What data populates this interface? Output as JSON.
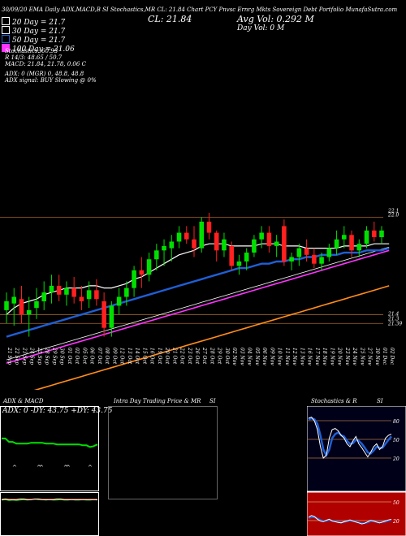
{
  "header": {
    "top_line": "30/09/20 EMA Daily ADX,MACD,B SI Stochastics,MR CL: 21.84 Chart PCY Pnvsc Ernrg Mkts Sovereign Debt Portfolio MunafaSutra.com",
    "close_label": "CL: 21.84",
    "avg_vol": "Avg Vol: 0.292 M",
    "day_vol": "Day Vol: 0 M",
    "legend": [
      {
        "label": "20 Day = 21.7",
        "color": "#ffffff"
      },
      {
        "label": "30 Day = 21.7",
        "color": "#ffffff"
      },
      {
        "label": "50 Day = 21.7",
        "color": "#1f5fd6"
      },
      {
        "label": "100 Day = 21.06",
        "color": "#ff33ff"
      }
    ],
    "stats": [
      "Stochastics: 60.93",
      "R 14/3: 48.65 / 50.7",
      "MACD: 21.84, 21.78, 0.06 C",
      "ADX: 0   (MGR) 0, 48.8, 48.8",
      "ADX signal:   BUY Slowing @ 0%"
    ]
  },
  "price_axis": {
    "upper_labels": [
      "22.1",
      "22.0"
    ],
    "lower_labels": [
      "21.4",
      "21.3",
      "21.39"
    ]
  },
  "chart_data": [
    {
      "type": "candlestick",
      "title": "",
      "dates": [
        "21 Sep",
        "22 Sep",
        "23 Sep",
        "24 Sep",
        "25 Sep",
        "28 Sep",
        "29 Sep",
        "30 Sep",
        "01 Oct",
        "02 Oct",
        "05 Oct",
        "06 Oct",
        "07 Oct",
        "08 Oct",
        "09 Oct",
        "12 Oct",
        "13 Oct",
        "14 Oct",
        "15 Oct",
        "16 Oct",
        "19 Oct",
        "20 Oct",
        "21 Oct",
        "22 Oct",
        "23 Oct",
        "26 Oct",
        "27 Oct",
        "28 Oct",
        "29 Oct",
        "30 Oct",
        "02 Nov",
        "03 Nov",
        "04 Nov",
        "05 Nov",
        "06 Nov",
        "09 Nov",
        "10 Nov",
        "11 Nov",
        "12 Nov",
        "13 Nov",
        "16 Nov",
        "17 Nov",
        "18 Nov",
        "19 Nov",
        "20 Nov",
        "23 Nov",
        "24 Nov",
        "25 Nov",
        "27 Nov",
        "30 Nov",
        "01 Dec",
        "02 Dec"
      ],
      "candles": [
        {
          "o": 21.42,
          "h": 21.5,
          "l": 21.36,
          "c": 21.46
        },
        {
          "o": 21.45,
          "h": 21.52,
          "l": 21.35,
          "c": 21.48
        },
        {
          "o": 21.47,
          "h": 21.53,
          "l": 21.36,
          "c": 21.4
        },
        {
          "o": 21.4,
          "h": 21.48,
          "l": 21.3,
          "c": 21.42
        },
        {
          "o": 21.43,
          "h": 21.52,
          "l": 21.38,
          "c": 21.46
        },
        {
          "o": 21.46,
          "h": 21.55,
          "l": 21.42,
          "c": 21.5
        },
        {
          "o": 21.5,
          "h": 21.58,
          "l": 21.45,
          "c": 21.53
        },
        {
          "o": 21.53,
          "h": 21.58,
          "l": 21.46,
          "c": 21.49
        },
        {
          "o": 21.49,
          "h": 21.55,
          "l": 21.44,
          "c": 21.52
        },
        {
          "o": 21.52,
          "h": 21.57,
          "l": 21.45,
          "c": 21.48
        },
        {
          "o": 21.48,
          "h": 21.53,
          "l": 21.42,
          "c": 21.46
        },
        {
          "o": 21.47,
          "h": 21.55,
          "l": 21.43,
          "c": 21.51
        },
        {
          "o": 21.51,
          "h": 21.56,
          "l": 21.44,
          "c": 21.47
        },
        {
          "o": 21.46,
          "h": 21.5,
          "l": 21.3,
          "c": 21.34
        },
        {
          "o": 21.34,
          "h": 21.46,
          "l": 21.3,
          "c": 21.44
        },
        {
          "o": 21.44,
          "h": 21.52,
          "l": 21.4,
          "c": 21.48
        },
        {
          "o": 21.48,
          "h": 21.55,
          "l": 21.44,
          "c": 21.52
        },
        {
          "o": 21.52,
          "h": 21.62,
          "l": 21.48,
          "c": 21.6
        },
        {
          "o": 21.6,
          "h": 21.66,
          "l": 21.52,
          "c": 21.58
        },
        {
          "o": 21.58,
          "h": 21.68,
          "l": 21.55,
          "c": 21.65
        },
        {
          "o": 21.65,
          "h": 21.72,
          "l": 21.6,
          "c": 21.69
        },
        {
          "o": 21.69,
          "h": 21.74,
          "l": 21.62,
          "c": 21.71
        },
        {
          "o": 21.7,
          "h": 21.76,
          "l": 21.64,
          "c": 21.73
        },
        {
          "o": 21.73,
          "h": 21.8,
          "l": 21.7,
          "c": 21.77
        },
        {
          "o": 21.77,
          "h": 21.8,
          "l": 21.72,
          "c": 21.74
        },
        {
          "o": 21.74,
          "h": 21.8,
          "l": 21.66,
          "c": 21.7
        },
        {
          "o": 21.7,
          "h": 21.84,
          "l": 21.68,
          "c": 21.82
        },
        {
          "o": 21.82,
          "h": 21.86,
          "l": 21.74,
          "c": 21.77
        },
        {
          "o": 21.77,
          "h": 21.78,
          "l": 21.64,
          "c": 21.69
        },
        {
          "o": 21.69,
          "h": 21.77,
          "l": 21.66,
          "c": 21.74
        },
        {
          "o": 21.71,
          "h": 21.73,
          "l": 21.6,
          "c": 21.62
        },
        {
          "o": 21.62,
          "h": 21.67,
          "l": 21.58,
          "c": 21.64
        },
        {
          "o": 21.64,
          "h": 21.7,
          "l": 21.6,
          "c": 21.68
        },
        {
          "o": 21.68,
          "h": 21.76,
          "l": 21.66,
          "c": 21.74
        },
        {
          "o": 21.74,
          "h": 21.8,
          "l": 21.7,
          "c": 21.77
        },
        {
          "o": 21.77,
          "h": 21.8,
          "l": 21.68,
          "c": 21.71
        },
        {
          "o": 21.71,
          "h": 21.76,
          "l": 21.66,
          "c": 21.73
        },
        {
          "o": 21.8,
          "h": 21.83,
          "l": 21.62,
          "c": 21.64
        },
        {
          "o": 21.64,
          "h": 21.68,
          "l": 21.6,
          "c": 21.66
        },
        {
          "o": 21.66,
          "h": 21.72,
          "l": 21.62,
          "c": 21.7
        },
        {
          "o": 21.7,
          "h": 21.74,
          "l": 21.64,
          "c": 21.67
        },
        {
          "o": 21.67,
          "h": 21.7,
          "l": 21.61,
          "c": 21.63
        },
        {
          "o": 21.63,
          "h": 21.68,
          "l": 21.6,
          "c": 21.66
        },
        {
          "o": 21.66,
          "h": 21.72,
          "l": 21.64,
          "c": 21.7
        },
        {
          "o": 21.7,
          "h": 21.78,
          "l": 21.67,
          "c": 21.74
        },
        {
          "o": 21.74,
          "h": 21.8,
          "l": 21.7,
          "c": 21.76
        },
        {
          "o": 21.76,
          "h": 21.78,
          "l": 21.66,
          "c": 21.69
        },
        {
          "o": 21.69,
          "h": 21.74,
          "l": 21.66,
          "c": 21.72
        },
        {
          "o": 21.72,
          "h": 21.8,
          "l": 21.7,
          "c": 21.78
        },
        {
          "o": 21.78,
          "h": 21.82,
          "l": 21.73,
          "c": 21.75
        },
        {
          "o": 21.75,
          "h": 21.8,
          "l": 21.72,
          "c": 21.78
        }
      ],
      "ylim": [
        21.28,
        22.4
      ],
      "price_lines": [
        21.84,
        21.4,
        21.36
      ],
      "overlays": {
        "ema20": [
          21.4,
          21.43,
          21.45,
          21.46,
          21.47,
          21.49,
          21.5,
          21.51,
          21.52,
          21.52,
          21.52,
          21.53,
          21.53,
          21.52,
          21.52,
          21.53,
          21.54,
          21.56,
          21.57,
          21.59,
          21.61,
          21.63,
          21.65,
          21.67,
          21.68,
          21.69,
          21.71,
          21.72,
          21.72,
          21.72,
          21.71,
          21.71,
          21.71,
          21.71,
          21.72,
          21.72,
          21.72,
          21.71,
          21.71,
          21.71,
          21.7,
          21.7,
          21.7,
          21.7,
          21.7,
          21.71,
          21.71,
          21.71,
          21.71,
          21.72,
          21.72,
          21.72
        ],
        "ema50": [
          21.3,
          21.31,
          21.32,
          21.33,
          21.34,
          21.35,
          21.36,
          21.37,
          21.38,
          21.39,
          21.4,
          21.41,
          21.42,
          21.43,
          21.44,
          21.45,
          21.46,
          21.47,
          21.48,
          21.49,
          21.5,
          21.51,
          21.52,
          21.53,
          21.54,
          21.55,
          21.56,
          21.57,
          21.58,
          21.59,
          21.6,
          21.61,
          21.61,
          21.62,
          21.63,
          21.63,
          21.64,
          21.64,
          21.65,
          21.65,
          21.66,
          21.66,
          21.67,
          21.67,
          21.67,
          21.68,
          21.68,
          21.68,
          21.69,
          21.69,
          21.69,
          21.7
        ],
        "ema100": [
          21.18,
          21.19,
          21.2,
          21.21,
          21.22,
          21.23,
          21.24,
          21.25,
          21.26,
          21.27,
          21.28,
          21.29,
          21.3,
          21.31,
          21.32,
          21.33,
          21.34,
          21.35,
          21.36,
          21.37,
          21.38,
          21.39,
          21.4,
          21.41,
          21.42,
          21.43,
          21.44,
          21.45,
          21.46,
          21.47,
          21.48,
          21.49,
          21.5,
          21.51,
          21.52,
          21.53,
          21.54,
          21.55,
          21.56,
          21.57,
          21.58,
          21.59,
          21.6,
          21.61,
          21.62,
          21.63,
          21.64,
          21.65,
          21.66,
          21.67,
          21.68,
          21.69
        ],
        "ema200": [
          21.02,
          21.03,
          21.04,
          21.05,
          21.06,
          21.07,
          21.08,
          21.09,
          21.1,
          21.11,
          21.12,
          21.13,
          21.14,
          21.15,
          21.16,
          21.17,
          21.18,
          21.19,
          21.2,
          21.21,
          21.22,
          21.23,
          21.24,
          21.25,
          21.26,
          21.27,
          21.28,
          21.29,
          21.3,
          21.31,
          21.32,
          21.33,
          21.34,
          21.35,
          21.36,
          21.37,
          21.38,
          21.39,
          21.4,
          21.41,
          21.42,
          21.43,
          21.44,
          21.45,
          21.46,
          21.47,
          21.48,
          21.49,
          21.5,
          21.51,
          21.52,
          21.53
        ]
      },
      "colors": {
        "up": "#00e000",
        "down": "#ff2020",
        "ema20": "#ffffff",
        "ema50": "#1f5fd6",
        "ema100": "#ff33ff",
        "ema200": "#ff8c1a"
      }
    },
    {
      "type": "line",
      "title": "ADX & MACD",
      "label": "ADX: 0  -DY: 43.75  +DY: 43.75",
      "series": [
        {
          "values": [
            0.62,
            0.62,
            0.58,
            0.58,
            0.56,
            0.56,
            0.56,
            0.56,
            0.57,
            0.57,
            0.57,
            0.57,
            0.56,
            0.56,
            0.56,
            0.55,
            0.55,
            0.55,
            0.55,
            0.55,
            0.55,
            0.55,
            0.54,
            0.54,
            0.52,
            0.53,
            0.55
          ],
          "color": "#00e000"
        }
      ],
      "lower_series": [
        {
          "values": [
            0.45,
            0.46,
            0.44,
            0.45,
            0.44,
            0.45,
            0.46,
            0.45,
            0.46,
            0.47,
            0.46,
            0.46,
            0.45,
            0.46,
            0.45,
            0.45,
            0.46,
            0.45,
            0.45,
            0.46,
            0.45,
            0.45,
            0.46,
            0.45,
            0.45,
            0.46,
            0.45
          ],
          "color": "#00e000"
        },
        {
          "values": [
            0.47,
            0.48,
            0.47,
            0.47,
            0.47,
            0.48,
            0.48,
            0.47,
            0.47,
            0.48,
            0.48,
            0.47,
            0.47,
            0.47,
            0.47,
            0.48,
            0.48,
            0.47,
            0.47,
            0.47,
            0.47,
            0.47,
            0.47,
            0.47,
            0.47,
            0.47,
            0.47
          ],
          "color": "#ff2020"
        },
        {
          "values": [
            0.46,
            0.47,
            0.46,
            0.46,
            0.46,
            0.47,
            0.47,
            0.46,
            0.46,
            0.47,
            0.47,
            0.46,
            0.46,
            0.46,
            0.46,
            0.47,
            0.47,
            0.46,
            0.46,
            0.46,
            0.46,
            0.46,
            0.46,
            0.46,
            0.46,
            0.46,
            0.46
          ],
          "color": "#ffffff"
        }
      ]
    },
    {
      "type": "line",
      "title": "Intra Day Trading Price & MR",
      "label": "SI"
    },
    {
      "type": "line",
      "title": "Stochastics & R",
      "label": "SI",
      "levels_upper": [
        "80",
        "50",
        "20"
      ],
      "levels_lower": [
        "50",
        "20"
      ],
      "stoch": [
        90,
        92,
        85,
        70,
        40,
        20,
        25,
        55,
        70,
        72,
        68,
        60,
        55,
        45,
        40,
        50,
        58,
        45,
        38,
        30,
        22,
        30,
        40,
        45,
        35,
        40,
        55,
        60,
        62
      ],
      "stoch_signal": [
        88,
        90,
        88,
        80,
        60,
        35,
        25,
        35,
        55,
        62,
        65,
        60,
        58,
        50,
        45,
        46,
        52,
        50,
        45,
        38,
        30,
        28,
        33,
        40,
        38,
        38,
        45,
        52,
        58
      ],
      "r_lower": [
        40,
        45,
        42,
        35,
        30,
        28,
        32,
        35,
        30,
        28,
        26,
        25,
        28,
        30,
        33,
        30,
        27,
        25,
        22,
        24,
        28,
        32,
        30,
        27,
        25,
        27,
        30,
        33,
        35
      ],
      "r_lower2": [
        38,
        40,
        40,
        37,
        33,
        30,
        30,
        33,
        31,
        29,
        27,
        26,
        27,
        29,
        31,
        30,
        28,
        26,
        24,
        24,
        26,
        29,
        29,
        27,
        26,
        27,
        28,
        31,
        33
      ]
    }
  ]
}
